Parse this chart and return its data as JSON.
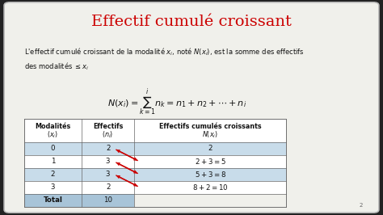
{
  "title": "Effectif cumulé croissant",
  "title_color": "#CC0000",
  "bg_color": "#f0f0eb",
  "slide_bg": "#222222",
  "border_color": "#bbbbbb",
  "desc_text": "L'effectif cumulé croissant de la modalité $x_i$, noté $N(x_i)$, est la somme des effectifs\ndes modalités $\\leq x_i$",
  "formula": "$N(x_i) = \\displaystyle\\sum_{k=1}^{i} n_k = n_1 + n_2 + \\cdots + n_i$",
  "col_headers_line1": [
    "Modalités",
    "Effectifs",
    "Effectifs cumulés croissants"
  ],
  "col_headers_line2": [
    "$(x_i)$",
    "$(n_i)$",
    "$N(x_i)$"
  ],
  "row_labels": [
    "0",
    "1",
    "2",
    "3",
    "Total"
  ],
  "effectifs": [
    "2",
    "3",
    "3",
    "2",
    "10"
  ],
  "cumules": [
    "2",
    "$2 + 3 = 5$",
    "$5 + 3 = 8$",
    "$8 + 2 = 10$",
    ""
  ],
  "row_colors": [
    "#c8dcea",
    "#ffffff",
    "#c8dcea",
    "#ffffff",
    "#a8c4d8"
  ],
  "header_color": "#ffffff",
  "table_border_color": "#666666",
  "arrow_color": "#CC0000",
  "text_color": "#111111",
  "page_number": "2",
  "title_fontsize": 14,
  "desc_fontsize": 6.0,
  "formula_fontsize": 8.0,
  "header_fontsize": 5.8,
  "data_fontsize": 6.2
}
